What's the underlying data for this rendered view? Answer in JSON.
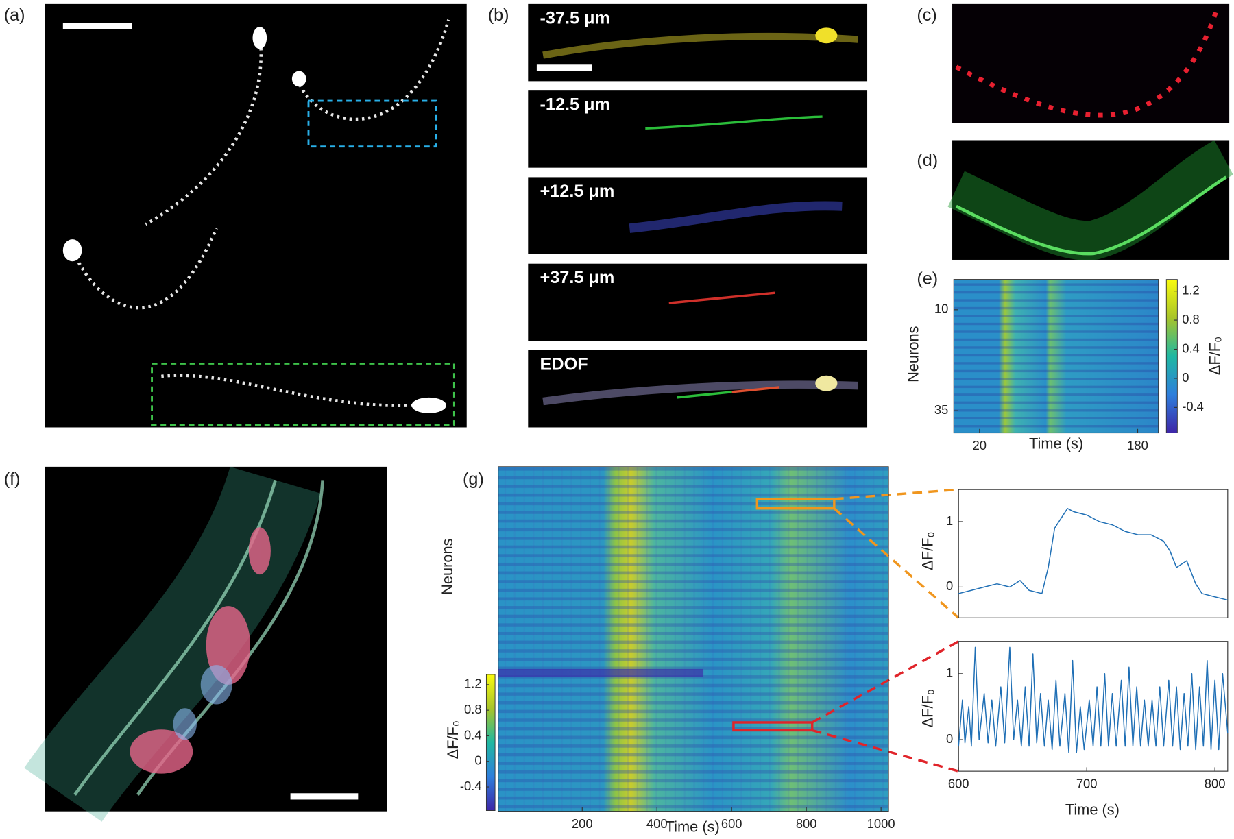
{
  "panel_labels": [
    "(a)",
    "(b)",
    "(c)",
    "(d)",
    "(e)",
    "(f)",
    "(g)"
  ],
  "depth_labels": [
    "-37.5 μm",
    "-12.5 μm",
    "+12.5 μm",
    "+37.5 μm",
    "EDOF"
  ],
  "chart_data": [
    {
      "type": "heatmap",
      "ylabel": "Neurons",
      "xlabel": "Time (s)",
      "xlim": [
        -6,
        201
      ],
      "xticks": [
        20,
        180
      ],
      "ylim": [
        2.5,
        40.5
      ],
      "yticks": [
        10,
        35
      ],
      "y_reversed": true,
      "colorbar": {
        "label": "ΔF/F₀",
        "clim": [
          -0.75,
          1.36
        ],
        "ticks": [
          -0.4,
          0,
          0.4,
          0.8,
          1.2
        ],
        "colormap": [
          "#3e26a8",
          "#2e7fdc",
          "#1fb8a2",
          "#a8c42a",
          "#f9fb0e"
        ]
      }
    },
    {
      "type": "heatmap",
      "ylabel": "Neurons",
      "xlabel": "Time (s)",
      "xlim": [
        -25,
        1020
      ],
      "xticks": [
        200,
        400,
        600,
        800,
        1000
      ],
      "colorbar": {
        "label": "ΔF/F₀",
        "clim": [
          -0.77,
          1.36
        ],
        "ticks": [
          -0.4,
          0,
          0.4,
          0.8,
          1.2
        ],
        "colormap": [
          "#3e26a8",
          "#2e7fdc",
          "#1fb8a2",
          "#a8c42a",
          "#f9fb0e"
        ]
      }
    },
    {
      "type": "line",
      "ylabel": "ΔF/F₀",
      "xlim": [
        600,
        810
      ],
      "ylim": [
        -0.47,
        1.49
      ],
      "yticks": [
        0,
        1
      ],
      "x": [
        600,
        610,
        620,
        630,
        640,
        648,
        655,
        665,
        670,
        675,
        685,
        690,
        700,
        710,
        720,
        730,
        740,
        750,
        760,
        765,
        770,
        778,
        785,
        790,
        800,
        810
      ],
      "series": [
        {
          "color": "#1f6fb5",
          "values": [
            -0.1,
            -0.05,
            0,
            0.05,
            0,
            0.1,
            -0.05,
            -0.1,
            0.3,
            0.9,
            1.2,
            1.15,
            1.1,
            1.0,
            0.95,
            0.85,
            0.8,
            0.8,
            0.7,
            0.55,
            0.3,
            0.4,
            0.05,
            -0.1,
            -0.15,
            -0.2
          ]
        }
      ]
    },
    {
      "type": "line",
      "ylabel": "ΔF/F₀",
      "xlabel": "Time (s)",
      "xlim": [
        600,
        810
      ],
      "ylim": [
        -0.48,
        1.49
      ],
      "yticks": [
        0,
        1
      ],
      "xticks": [
        600,
        700,
        800
      ],
      "x": [
        600,
        603,
        605,
        608,
        610,
        613,
        616,
        620,
        623,
        626,
        629,
        633,
        636,
        640,
        643,
        646,
        649,
        652,
        655,
        658,
        661,
        664,
        667,
        670,
        673,
        676,
        679,
        683,
        686,
        689,
        692,
        695,
        698,
        702,
        705,
        708,
        711,
        714,
        717,
        720,
        723,
        727,
        730,
        733,
        736,
        739,
        742,
        745,
        748,
        751,
        754,
        757,
        760,
        764,
        767,
        770,
        773,
        776,
        779,
        782,
        785,
        788,
        791,
        794,
        797,
        800,
        803,
        806,
        810
      ],
      "series": [
        {
          "color": "#1f6fb5",
          "values": [
            -0.1,
            0.6,
            -0.05,
            0.5,
            -0.1,
            1.4,
            0,
            0.7,
            -0.05,
            0.6,
            -0.1,
            0.8,
            -0.05,
            1.4,
            0,
            0.6,
            -0.1,
            0.8,
            -0.1,
            1.3,
            -0.05,
            0.7,
            -0.1,
            0.6,
            -0.15,
            0.9,
            -0.1,
            0.7,
            -0.2,
            1.2,
            -0.2,
            0.5,
            -0.15,
            0.6,
            -0.1,
            0.8,
            -0.1,
            1.0,
            -0.1,
            0.7,
            -0.1,
            0.9,
            -0.1,
            1.1,
            -0.1,
            0.8,
            -0.1,
            0.6,
            -0.1,
            0.6,
            -0.1,
            0.8,
            -0.1,
            0.9,
            -0.1,
            0.8,
            -0.15,
            0.7,
            -0.1,
            1.0,
            -0.15,
            0.8,
            -0.1,
            1.2,
            -0.15,
            0.9,
            -0.15,
            1.0,
            0.1
          ]
        }
      ]
    }
  ]
}
